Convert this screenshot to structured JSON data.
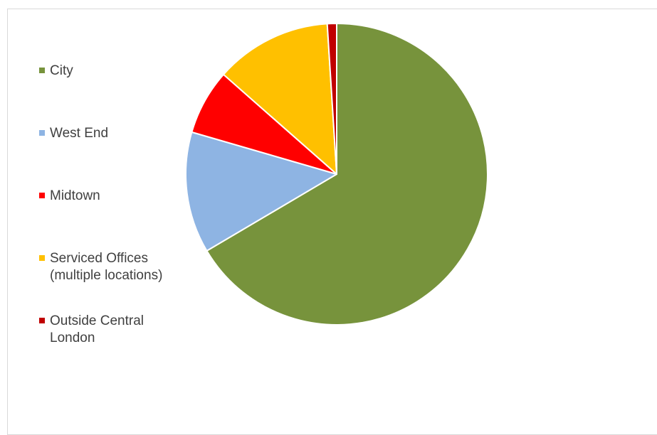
{
  "chart_data": {
    "type": "pie",
    "title": "",
    "categories": [
      "City",
      "West End",
      "Midtown",
      "Serviced Offices (multiple locations)",
      "Outside Central London"
    ],
    "values": [
      66.5,
      13.0,
      7.0,
      12.5,
      1.0
    ],
    "colors": [
      "#77933c",
      "#8eb4e3",
      "#ff0000",
      "#ffc000",
      "#c00000"
    ],
    "start_angle_deg": 0,
    "direction": "clockwise",
    "slice_border_color": "#ffffff",
    "legend_position": "left"
  },
  "legend": {
    "items": [
      {
        "label": "City",
        "color": "#77933c"
      },
      {
        "label": "West End",
        "color": "#8eb4e3"
      },
      {
        "label": "Midtown",
        "color": "#ff0000"
      },
      {
        "label": "Serviced Offices (multiple locations)",
        "color": "#ffc000"
      },
      {
        "label": "Outside Central London",
        "color": "#c00000"
      }
    ]
  }
}
